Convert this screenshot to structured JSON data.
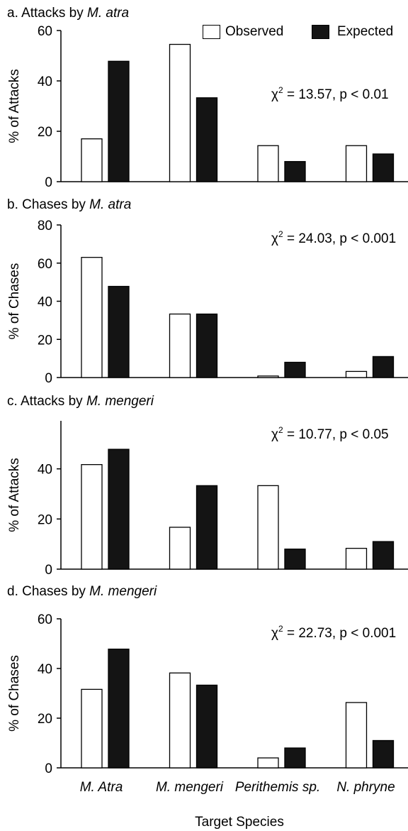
{
  "colors": {
    "observed": "#ffffff",
    "expected": "#141414",
    "axis": "#000000"
  },
  "legend": [
    {
      "name": "Observed",
      "color": "#ffffff"
    },
    {
      "name": "Expected",
      "color": "#141414"
    }
  ],
  "xlabel": "Target Species",
  "x_tick_labels": [
    "M. Atra",
    "M. mengeri",
    "Perithemis sp.",
    "N. phryne"
  ],
  "chart_data": [
    {
      "type": "bar",
      "panel_label": "a.",
      "title_prefix": "Attacks by",
      "title_species": "M. atra",
      "ylabel": "% of Attacks",
      "ylim": [
        0,
        60
      ],
      "yticks": [
        0,
        20,
        40,
        60
      ],
      "categories": [
        "M. Atra",
        "M. mengeri",
        "Perithemis sp.",
        "N. phryne"
      ],
      "series": [
        {
          "name": "Observed",
          "values": [
            17,
            54.5,
            14.3,
            14.3
          ]
        },
        {
          "name": "Expected",
          "values": [
            47.8,
            33.3,
            8,
            11
          ]
        }
      ],
      "annotation": {
        "chi": "χ",
        "sup": "2",
        "text": " = 13.57, p < 0.01"
      }
    },
    {
      "type": "bar",
      "panel_label": "b.",
      "title_prefix": "Chases by",
      "title_species": "M. atra",
      "ylabel": "% of Chases",
      "ylim": [
        0,
        80
      ],
      "yticks": [
        0,
        20,
        40,
        60,
        80
      ],
      "categories": [
        "M. Atra",
        "M. mengeri",
        "Perithemis sp.",
        "N. phryne"
      ],
      "series": [
        {
          "name": "Observed",
          "values": [
            63,
            33.3,
            0.8,
            3.2
          ]
        },
        {
          "name": "Expected",
          "values": [
            47.8,
            33.3,
            8,
            11
          ]
        }
      ],
      "annotation": {
        "chi": "χ",
        "sup": "2",
        "text": " = 24.03, p < 0.001"
      }
    },
    {
      "type": "bar",
      "panel_label": "c.",
      "title_prefix": "Attacks by",
      "title_species": "M. mengeri",
      "ylabel": "% of Attacks",
      "ylim": [
        0,
        60
      ],
      "yticks": [
        0,
        20,
        40
      ],
      "categories": [
        "M. Atra",
        "M. mengeri",
        "Perithemis sp.",
        "N. phryne"
      ],
      "series": [
        {
          "name": "Observed",
          "values": [
            41.7,
            16.7,
            33.3,
            8.3
          ]
        },
        {
          "name": "Expected",
          "values": [
            47.8,
            33.3,
            8,
            11
          ]
        }
      ],
      "annotation": {
        "chi": "χ",
        "sup": "2",
        "text": " = 10.77, p < 0.05"
      }
    },
    {
      "type": "bar",
      "panel_label": "d.",
      "title_prefix": "Chases by",
      "title_species": "M. mengeri",
      "ylabel": "% of Chases",
      "ylim": [
        0,
        60
      ],
      "yticks": [
        0,
        20,
        40,
        60
      ],
      "categories": [
        "M. Atra",
        "M. mengeri",
        "Perithemis sp.",
        "N. phryne"
      ],
      "series": [
        {
          "name": "Observed",
          "values": [
            31.6,
            38.2,
            4,
            26.3
          ]
        },
        {
          "name": "Expected",
          "values": [
            47.8,
            33.3,
            8,
            11
          ]
        }
      ],
      "annotation": {
        "chi": "χ",
        "sup": "2",
        "text": " = 22.73, p < 0.001"
      }
    }
  ]
}
